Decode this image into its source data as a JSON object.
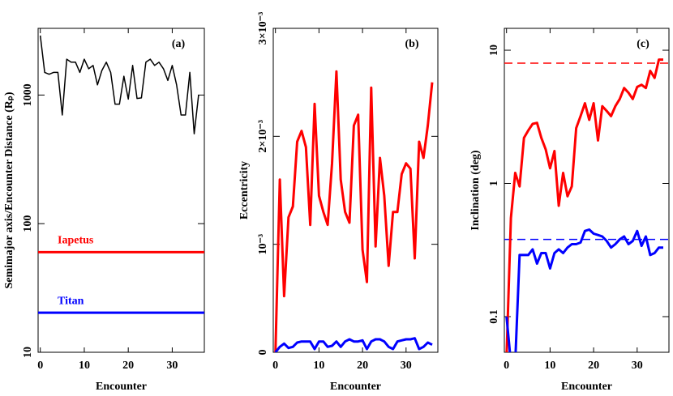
{
  "chart_data": [
    {
      "type": "line",
      "annotation": "(a)",
      "xlabel": "Encounter",
      "ylabel": "Semimajor axis/Encounter Distance (Rₚ)",
      "log_y": true,
      "xlim": [
        -0.5,
        37.3
      ],
      "ylim": [
        10,
        3300
      ],
      "xticks": [
        0,
        10,
        20,
        30
      ],
      "yticks": [
        10,
        100,
        1000
      ],
      "x": [
        0,
        1,
        2,
        3,
        4,
        5,
        6,
        7,
        8,
        9,
        10,
        11,
        12,
        13,
        14,
        15,
        16,
        17,
        18,
        19,
        20,
        21,
        22,
        23,
        24,
        25,
        26,
        27,
        28,
        29,
        30,
        31,
        32,
        33,
        34,
        35,
        36
      ],
      "series": [
        {
          "color": "#000000",
          "values": [
            2900,
            1500,
            1450,
            1500,
            1500,
            700,
            1900,
            1800,
            1800,
            1500,
            1900,
            1600,
            1700,
            1200,
            1550,
            1800,
            1500,
            850,
            850,
            1400,
            930,
            1700,
            940,
            950,
            1800,
            1900,
            1700,
            1800,
            1600,
            1300,
            1700,
            1200,
            700,
            700,
            1500,
            500,
            1000
          ]
        }
      ],
      "hlines": [
        {
          "value": 60,
          "color": "#ff0000",
          "label": "Iapetus"
        },
        {
          "value": 20.3,
          "color": "#0000ff",
          "label": "Titan"
        }
      ]
    },
    {
      "type": "line",
      "annotation": "(b)",
      "xlabel": "Encounter",
      "ylabel": "Eccentricity",
      "log_y": false,
      "xlim": [
        -0.5,
        37.3
      ],
      "ylim": [
        0,
        0.003
      ],
      "xticks": [
        0,
        10,
        20,
        30
      ],
      "yticks": [
        0,
        {
          "value": 0.001,
          "label": "10⁻³"
        },
        {
          "value": 0.002,
          "label": "2×10⁻³"
        },
        {
          "value": 0.003,
          "label": "3×10⁻³"
        }
      ],
      "x": [
        0,
        1,
        2,
        3,
        4,
        5,
        6,
        7,
        8,
        9,
        10,
        11,
        12,
        13,
        14,
        15,
        16,
        17,
        18,
        19,
        20,
        21,
        22,
        23,
        24,
        25,
        26,
        27,
        28,
        29,
        30,
        31,
        32,
        33,
        34,
        35,
        36
      ],
      "series": [
        {
          "color": "#ff0000",
          "values": [
            0,
            0.0016,
            0.00052,
            0.00125,
            0.00135,
            0.00195,
            0.00205,
            0.0019,
            0.00118,
            0.0023,
            0.00145,
            0.0013,
            0.00118,
            0.00175,
            0.0026,
            0.0016,
            0.0013,
            0.0012,
            0.0021,
            0.0022,
            0.00095,
            0.00065,
            0.00245,
            0.00098,
            0.0018,
            0.00145,
            0.0008,
            0.0013,
            0.0013,
            0.00165,
            0.00175,
            0.0017,
            0.00087,
            0.00195,
            0.0018,
            0.0021,
            0.0025
          ]
        },
        {
          "color": "#0000ff",
          "values": [
            0,
            5e-05,
            8e-05,
            4e-05,
            5e-05,
            9e-05,
            0.0001,
            0.0001,
            0.0001,
            3e-05,
            0.0001,
            0.0001,
            5e-05,
            6e-05,
            0.0001,
            5e-05,
            0.0001,
            0.00012,
            0.0001,
            0.0001,
            0.00011,
            3e-05,
            0.0001,
            0.00012,
            0.00012,
            0.0001,
            5e-05,
            3e-05,
            0.0001,
            0.00011,
            0.00012,
            0.00012,
            0.00013,
            3e-05,
            5e-05,
            9e-05,
            7e-05
          ]
        }
      ],
      "hlines": []
    },
    {
      "type": "line",
      "annotation": "(c)",
      "xlabel": "Encounter",
      "ylabel": "Inclination (deg)",
      "log_y": true,
      "xlim": [
        -0.5,
        37.3
      ],
      "ylim": [
        0.054,
        14.6
      ],
      "xticks": [
        0,
        10,
        20,
        30
      ],
      "yticks": [
        0.1,
        1,
        10
      ],
      "x": [
        0,
        1,
        2,
        3,
        4,
        5,
        6,
        7,
        8,
        9,
        10,
        11,
        12,
        13,
        14,
        15,
        16,
        17,
        18,
        19,
        20,
        21,
        22,
        23,
        24,
        25,
        26,
        27,
        28,
        29,
        30,
        31,
        32,
        33,
        34,
        35,
        36
      ],
      "series": [
        {
          "color": "#ff0000",
          "values": [
            0.05,
            0.55,
            1.2,
            0.95,
            2.2,
            2.5,
            2.8,
            2.85,
            2.2,
            1.8,
            1.3,
            1.75,
            0.68,
            1.2,
            0.8,
            0.95,
            2.6,
            3.2,
            4,
            3,
            4,
            2.1,
            3.8,
            3.5,
            3.2,
            3.8,
            4.3,
            5.2,
            4.8,
            4.3,
            5.3,
            5.5,
            5.2,
            7,
            6.2,
            8.5,
            8.5
          ]
        },
        {
          "color": "#0000ff",
          "values": [
            0.1,
            0.045,
            0.045,
            0.29,
            0.29,
            0.29,
            0.32,
            0.25,
            0.3,
            0.3,
            0.23,
            0.3,
            0.32,
            0.3,
            0.33,
            0.35,
            0.35,
            0.36,
            0.44,
            0.45,
            0.42,
            0.41,
            0.4,
            0.37,
            0.33,
            0.35,
            0.38,
            0.4,
            0.35,
            0.37,
            0.44,
            0.34,
            0.4,
            0.29,
            0.3,
            0.33,
            0.33
          ]
        }
      ],
      "hlines": [
        {
          "value": 8,
          "color": "#ff0000",
          "dash": true
        },
        {
          "value": 0.38,
          "color": "#0000ff",
          "dash": true
        }
      ]
    }
  ]
}
